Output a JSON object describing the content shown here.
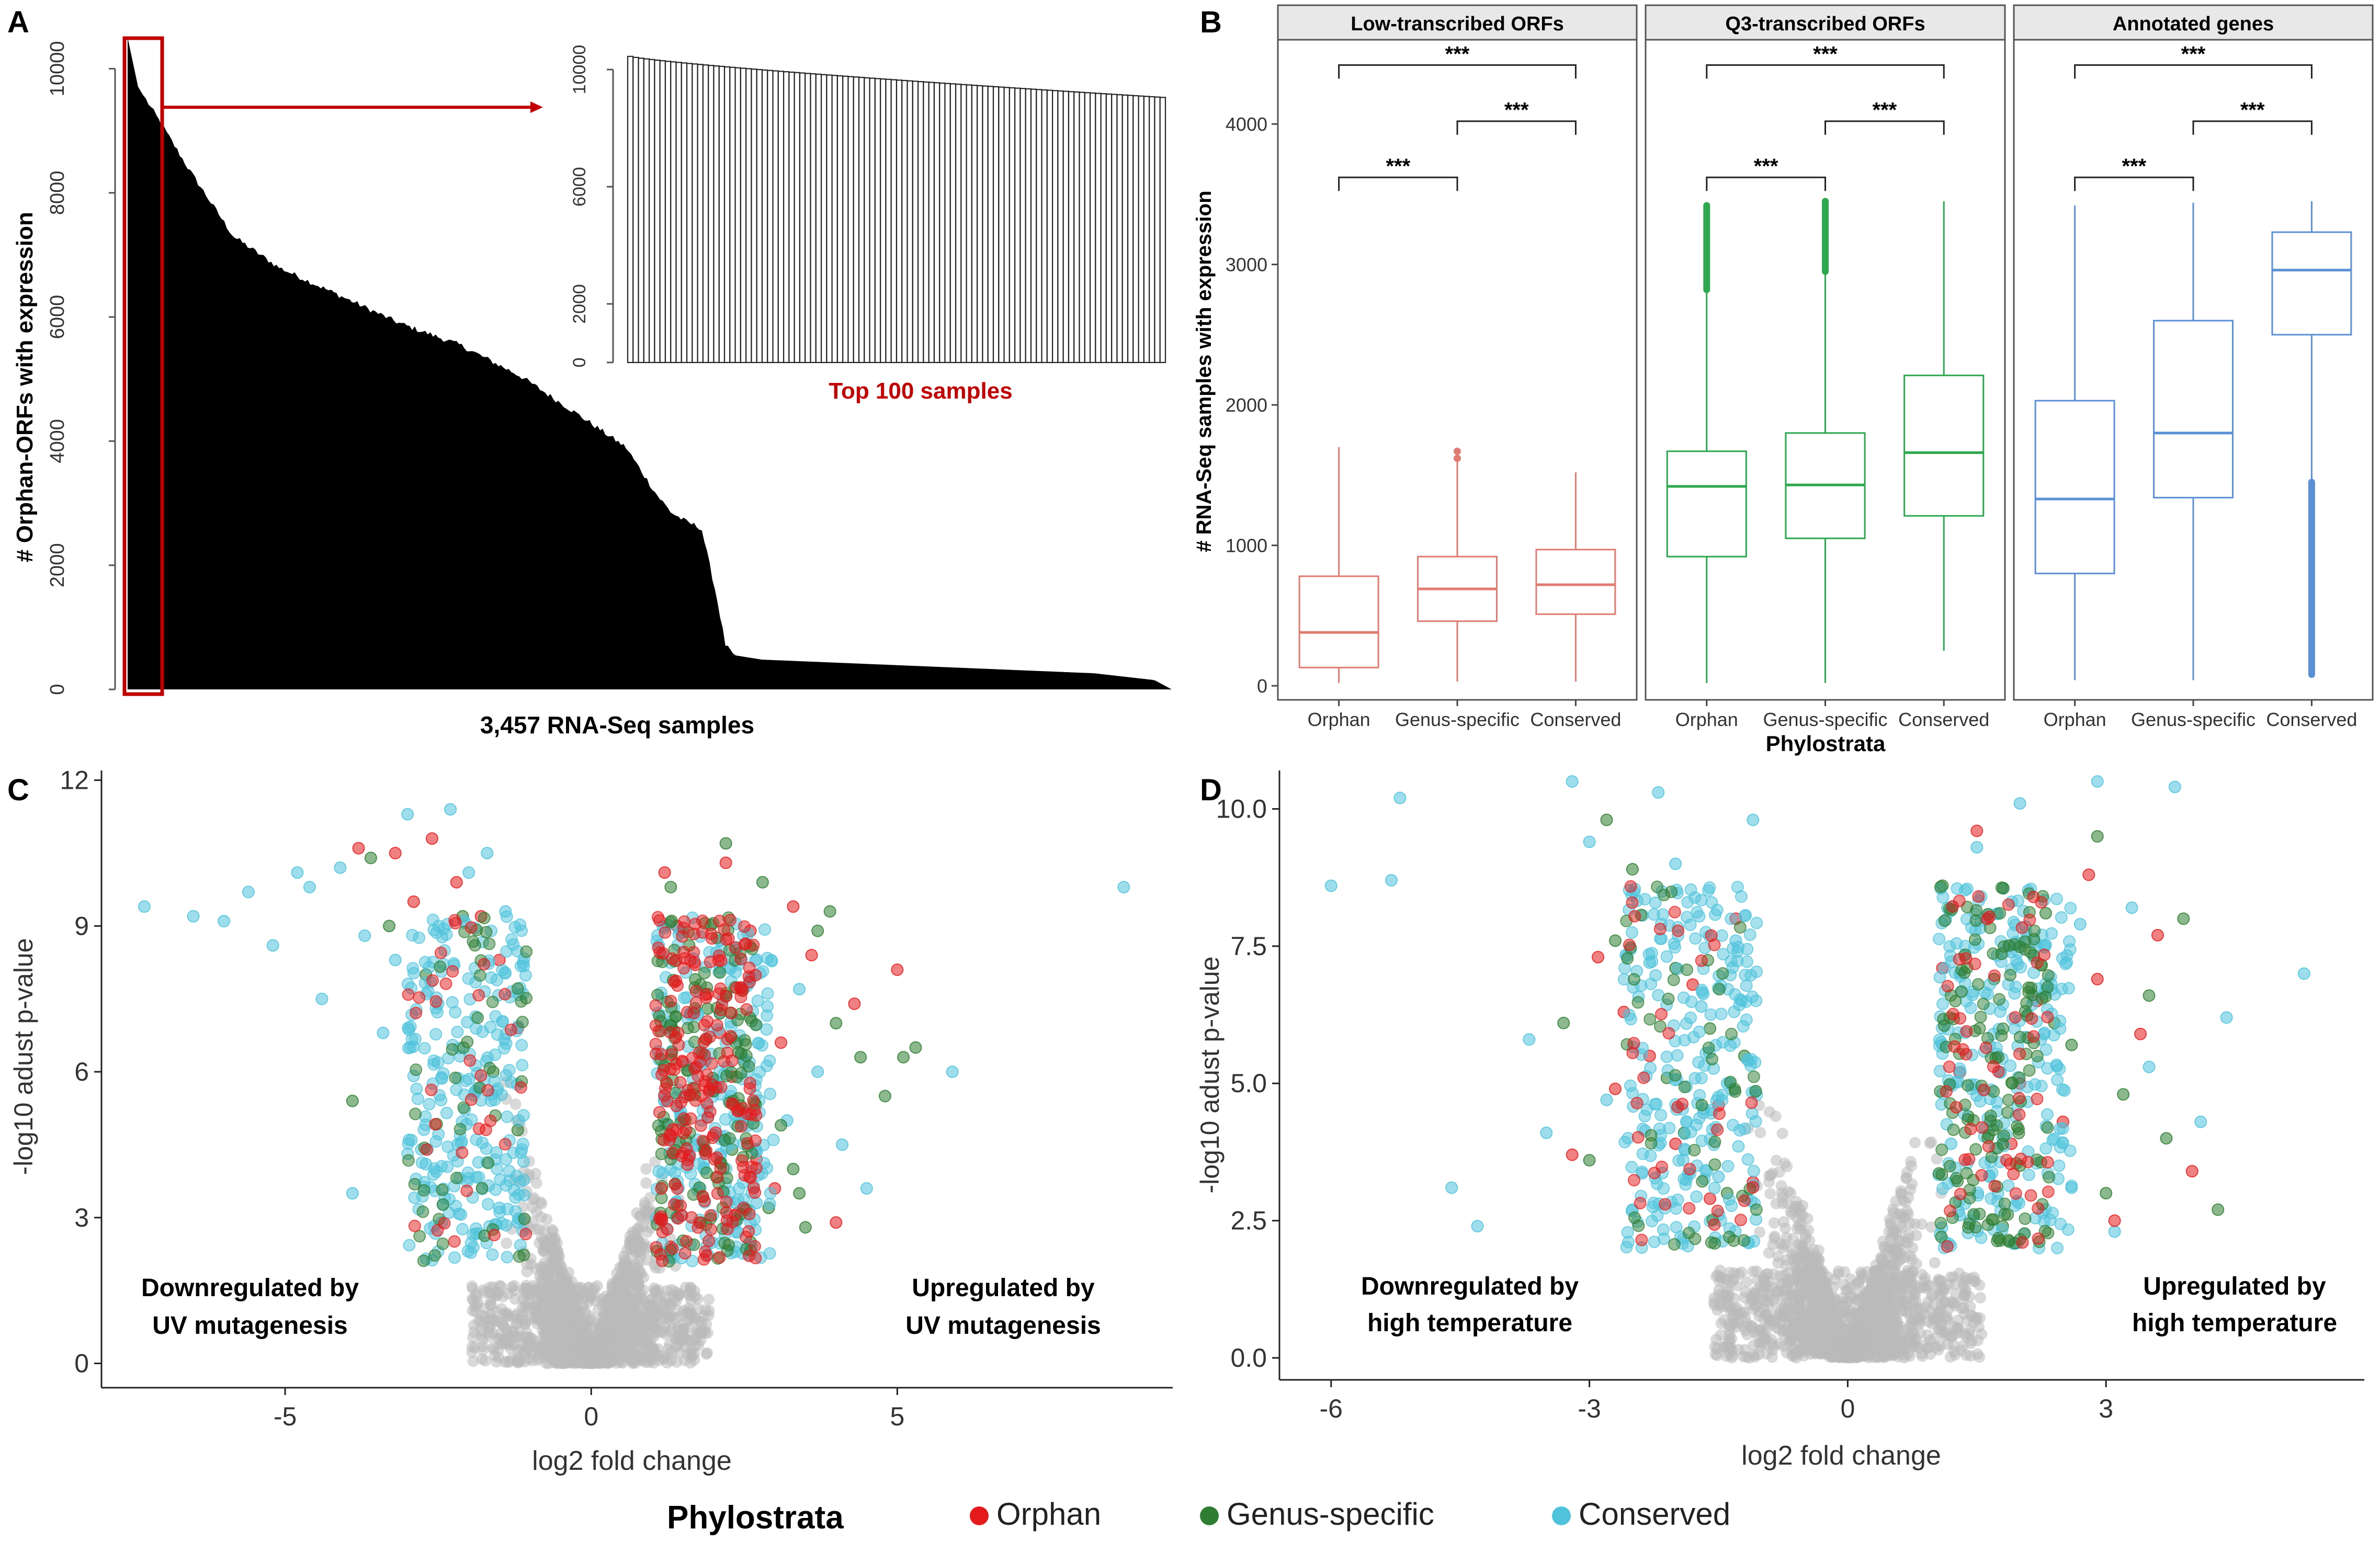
{
  "colors": {
    "orphan": "#e41a1c",
    "genus": "#2e7d32",
    "conserved": "#4fc3dc",
    "grey": "#b9b9b9",
    "red_highlight": "#c00000",
    "boxB_low": "#e07b72",
    "boxB_q3": "#2ea84f",
    "boxB_ann": "#5b8fd6"
  },
  "legend": {
    "title": "Phylostrata",
    "items": [
      {
        "label": "Orphan",
        "color": "#e41a1c"
      },
      {
        "label": "Genus-specific",
        "color": "#2e7d32"
      },
      {
        "label": "Conserved",
        "color": "#4fc3dc"
      }
    ]
  },
  "chart_data": [
    {
      "panel": "A",
      "type": "bar",
      "title": "",
      "xlabel": "3,457 RNA-Seq samples",
      "ylabel": "# Orphan-ORFs with expression",
      "ylim": [
        0,
        10500
      ],
      "yticks": [
        0,
        2000,
        4000,
        6000,
        8000,
        10000
      ],
      "n_samples": 3457,
      "profile": {
        "sample_rank": [
          0,
          35,
          100,
          200,
          350,
          500,
          700,
          900,
          1100,
          1300,
          1500,
          1650,
          1750,
          1800,
          1850,
          1900,
          1950,
          1980,
          2010,
          2100,
          2400,
          2800,
          3200,
          3400,
          3457
        ],
        "orphan_orfs": [
          10500,
          9700,
          9200,
          8400,
          7300,
          6800,
          6350,
          5900,
          5550,
          5050,
          4400,
          3900,
          3150,
          2850,
          2700,
          2600,
          1500,
          700,
          550,
          480,
          420,
          340,
          260,
          150,
          0
        ]
      },
      "inset": {
        "title": "Top 100 samples",
        "yticks": [
          0,
          2000,
          6000,
          10000
        ],
        "ylim": [
          0,
          10500
        ],
        "n_bars": 100,
        "first_value": 10450,
        "last_value": 9050
      }
    },
    {
      "panel": "B",
      "type": "boxplot",
      "ylabel": "# RNA-Seq samples with expression",
      "xlabel": "Phylostrata",
      "ylim": [
        -100,
        4600
      ],
      "yticks": [
        0,
        1000,
        2000,
        3000,
        4000
      ],
      "categories": [
        "Orphan",
        "Genus-specific",
        "Conserved"
      ],
      "facets": [
        {
          "title": "Low-transcribed ORFs",
          "boxes": [
            {
              "q1": 130,
              "median": 380,
              "q3": 780,
              "lo": 20,
              "hi": 1700
            },
            {
              "q1": 460,
              "median": 690,
              "q3": 920,
              "lo": 30,
              "hi": 1600
            },
            {
              "q1": 510,
              "median": 720,
              "q3": 970,
              "lo": 30,
              "hi": 1520
            }
          ],
          "outliers": [
            [],
            [
              1620,
              1670
            ],
            []
          ],
          "sig": [
            {
              "from": 0,
              "to": 1,
              "y": 3620,
              "label": "***"
            },
            {
              "from": 1,
              "to": 2,
              "y": 4020,
              "label": "***"
            },
            {
              "from": 0,
              "to": 2,
              "y": 4420,
              "label": "***"
            }
          ]
        },
        {
          "title": "Q3-transcribed ORFs",
          "boxes": [
            {
              "q1": 920,
              "median": 1420,
              "q3": 1670,
              "lo": 20,
              "hi": 2820
            },
            {
              "q1": 1050,
              "median": 1430,
              "q3": 1800,
              "lo": 20,
              "hi": 2950
            },
            {
              "q1": 1210,
              "median": 1660,
              "q3": 2210,
              "lo": 250,
              "hi": 3450
            }
          ],
          "outlier_bands": [
            [
              2820,
              3420
            ],
            [
              2950,
              3450
            ],
            []
          ],
          "sig": [
            {
              "from": 0,
              "to": 1,
              "y": 3620,
              "label": "***"
            },
            {
              "from": 1,
              "to": 2,
              "y": 4020,
              "label": "***"
            },
            {
              "from": 0,
              "to": 2,
              "y": 4420,
              "label": "***"
            }
          ]
        },
        {
          "title": "Annotated genes",
          "boxes": [
            {
              "q1": 800,
              "median": 1330,
              "q3": 2030,
              "lo": 40,
              "hi": 3420
            },
            {
              "q1": 1340,
              "median": 1800,
              "q3": 2600,
              "lo": 40,
              "hi": 3440
            },
            {
              "q1": 2500,
              "median": 2960,
              "q3": 3230,
              "lo": 1450,
              "hi": 3450
            }
          ],
          "outlier_bands": [
            [],
            [],
            [
              80,
              1450
            ]
          ],
          "sig": [
            {
              "from": 0,
              "to": 1,
              "y": 3620,
              "label": "***"
            },
            {
              "from": 1,
              "to": 2,
              "y": 4020,
              "label": "***"
            },
            {
              "from": 0,
              "to": 2,
              "y": 4420,
              "label": "***"
            }
          ]
        }
      ]
    },
    {
      "panel": "C",
      "type": "scatter",
      "title": "",
      "xlabel": "log2 fold change",
      "ylabel": "-log10 adust p-value",
      "xlim": [
        -8,
        9.5
      ],
      "ylim": [
        -0.5,
        12.2
      ],
      "xticks": [
        -5,
        0,
        5
      ],
      "yticks": [
        0,
        3,
        6,
        9,
        12
      ],
      "annotations": [
        "Downregulated by",
        "UV mutagenesis",
        "Upregulated by",
        "UV mutagenesis"
      ],
      "series": [
        {
          "name": "Orphan",
          "color": "#e41a1c",
          "x": [
            -3.8,
            -3.2,
            -2.6,
            -2.2,
            -1.8,
            -1.5,
            -1.2,
            -2.9,
            1.2,
            1.4,
            1.7,
            1.9,
            2.1,
            2.3,
            2.5,
            2.7,
            3.0,
            3.3,
            3.6,
            4.0,
            4.3,
            5.0,
            1.5,
            2.0,
            2.4,
            1.3,
            1.8,
            2.6,
            3.1,
            2.2
          ],
          "y": [
            10.6,
            10.5,
            10.8,
            9.9,
            9.2,
            8.3,
            6.9,
            9.5,
            10.1,
            9.0,
            8.2,
            7.6,
            6.8,
            5.9,
            5.1,
            4.2,
            3.6,
            9.4,
            8.4,
            2.9,
            7.4,
            8.1,
            6.2,
            4.7,
            3.1,
            2.4,
            5.5,
            8.9,
            6.6,
            10.3
          ]
        },
        {
          "name": "Genus-specific",
          "color": "#2e7d32",
          "x": [
            -3.6,
            -3.3,
            -2.7,
            -2.1,
            -1.6,
            -1.2,
            -3.9,
            1.3,
            1.6,
            1.9,
            2.2,
            2.5,
            2.8,
            3.1,
            3.4,
            3.7,
            4.0,
            4.4,
            5.1,
            5.3,
            1.4,
            2.0,
            2.6,
            3.3,
            3.9,
            1.7,
            2.3,
            2.9,
            4.8,
            3.5
          ],
          "y": [
            10.4,
            9.0,
            8.0,
            9.2,
            6.0,
            4.8,
            5.4,
            9.8,
            8.6,
            7.3,
            10.7,
            6.2,
            9.9,
            4.9,
            3.5,
            8.9,
            7.0,
            6.3,
            6.3,
            6.5,
            3.0,
            5.6,
            2.5,
            4.0,
            9.3,
            7.9,
            4.4,
            3.2,
            5.5,
            2.8
          ]
        },
        {
          "name": "Conserved",
          "color": "#4fc3dc",
          "x": [
            -7.3,
            -6.5,
            -6.0,
            -5.6,
            -5.2,
            -4.8,
            -4.4,
            -4.1,
            -3.7,
            -3.4,
            -3.0,
            -2.7,
            -2.3,
            -2.0,
            -1.7,
            -1.4,
            -1.2,
            -3.9,
            -4.6,
            -3.2,
            -2.5,
            -1.9,
            -1.5,
            1.2,
            1.6,
            2.1,
            2.7,
            3.2,
            3.7,
            4.1,
            4.5,
            5.9,
            8.7,
            3.4,
            2.4,
            1.3
          ],
          "y": [
            9.4,
            9.2,
            9.1,
            9.7,
            8.6,
            10.1,
            7.5,
            10.2,
            8.8,
            6.8,
            11.3,
            4.1,
            11.4,
            10.1,
            10.5,
            9.3,
            2.9,
            3.5,
            9.8,
            8.3,
            7.4,
            5.6,
            3.2,
            5.4,
            4.3,
            8.7,
            3.3,
            5.0,
            6.0,
            4.5,
            3.6,
            6.0,
            9.8,
            7.7,
            2.7,
            2.2
          ]
        }
      ]
    },
    {
      "panel": "D",
      "type": "scatter",
      "title": "",
      "xlabel": "log2 fold change",
      "ylabel": "-log10 adust p-value",
      "xlim": [
        -6.6,
        6
      ],
      "ylim": [
        -0.4,
        10.7
      ],
      "xticks": [
        -6,
        -3,
        0,
        3
      ],
      "yticks": [
        0.0,
        2.5,
        5.0,
        7.5,
        10.0
      ],
      "xtick_labels": [
        "-6",
        "-3",
        "0",
        "3"
      ],
      "ytick_labels": [
        "0.0",
        "2.5",
        "5.0",
        "7.5",
        "10.0"
      ],
      "annotations": [
        "Downregulated by",
        "high temperature",
        "Upregulated by",
        "high temperature"
      ],
      "series": [
        {
          "name": "Orphan",
          "color": "#e41a1c",
          "x": [
            -3.2,
            -2.9,
            -2.6,
            -2.3,
            -2.0,
            -1.8,
            -1.5,
            -1.3,
            -1.1,
            1.1,
            1.3,
            1.6,
            1.9,
            2.2,
            2.5,
            2.8,
            3.1,
            3.4,
            3.6,
            4.0,
            -2.7,
            -1.6,
            1.5,
            2.0,
            2.9
          ],
          "y": [
            3.7,
            7.3,
            6.3,
            5.5,
            3.9,
            6.8,
            4.6,
            8.0,
            3.2,
            7.1,
            5.2,
            8.0,
            3.9,
            6.5,
            4.3,
            8.8,
            2.5,
            5.9,
            7.7,
            3.4,
            4.9,
            2.9,
            9.6,
            5.0,
            6.9
          ]
        },
        {
          "name": "Genus-specific",
          "color": "#2e7d32",
          "x": [
            -3.3,
            -3.0,
            -2.7,
            -2.5,
            -2.1,
            -1.9,
            -1.6,
            -1.4,
            -1.2,
            1.1,
            1.4,
            1.7,
            2.0,
            2.3,
            2.6,
            2.9,
            3.2,
            3.5,
            3.9,
            4.3,
            -2.8,
            -2.0,
            1.8,
            2.4,
            3.0,
            3.7
          ],
          "y": [
            6.1,
            3.6,
            7.6,
            8.9,
            5.1,
            4.1,
            6.0,
            3.0,
            5.5,
            8.6,
            4.4,
            6.9,
            3.5,
            8.1,
            5.7,
            9.5,
            4.8,
            6.6,
            8.0,
            2.7,
            9.8,
            7.1,
            2.4,
            6.1,
            3.0,
            4.0
          ]
        },
        {
          "name": "Conserved",
          "color": "#4fc3dc",
          "x": [
            -6.0,
            -5.3,
            -5.2,
            -4.6,
            -4.3,
            -3.7,
            -3.5,
            -3.2,
            -3.0,
            -2.8,
            -2.5,
            -2.3,
            -2.0,
            -1.7,
            -1.5,
            -1.3,
            -1.1,
            1.1,
            1.3,
            1.5,
            1.8,
            2.0,
            2.3,
            2.6,
            2.9,
            3.3,
            3.5,
            3.8,
            4.1,
            4.4,
            5.3,
            -2.2,
            -1.4,
            1.2,
            2.7,
            3.1
          ],
          "y": [
            8.6,
            8.7,
            10.2,
            3.1,
            2.4,
            5.8,
            4.1,
            10.5,
            9.4,
            4.7,
            2.7,
            7.2,
            9.0,
            6.4,
            3.3,
            7.6,
            9.8,
            5.7,
            2.6,
            9.3,
            4.0,
            10.1,
            6.7,
            3.1,
            10.5,
            8.2,
            5.3,
            10.4,
            4.3,
            6.2,
            7.0,
            10.3,
            5.0,
            3.9,
            7.9,
            2.3
          ]
        }
      ]
    }
  ]
}
